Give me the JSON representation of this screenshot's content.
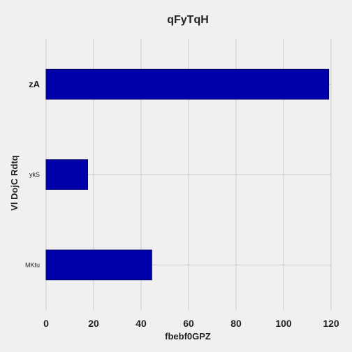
{
  "chart_data": {
    "type": "bar",
    "orientation": "horizontal",
    "title": "qFyTqH",
    "xlabel": "fbebf0GPZ",
    "ylabel": "Vl DojC Rdtq",
    "categories": [
      "zA",
      "ykS",
      "MKtu"
    ],
    "values": [
      119,
      17.5,
      44.5
    ],
    "xlim": [
      0,
      120
    ],
    "xticks": [
      0,
      20,
      40,
      60,
      80,
      100,
      120
    ],
    "grid": true,
    "bar_color": "#0000aa",
    "background_color": "#f0f0f0"
  }
}
